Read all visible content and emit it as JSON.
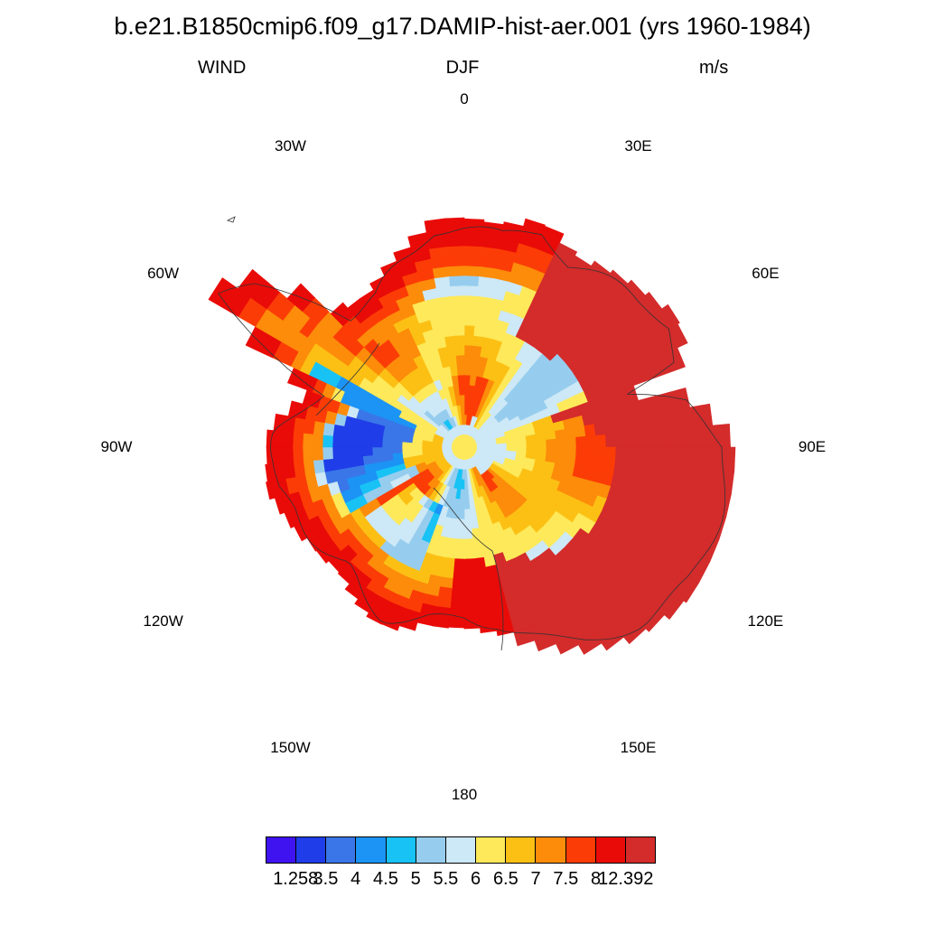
{
  "title": "b.e21.B1850cmip6.f09_g17.DAMIP-hist-aer.001 (yrs 1960-1984)",
  "subtitle": {
    "left": "WIND",
    "center": "DJF",
    "right": "m/s"
  },
  "longitude_labels": [
    "0",
    "30E",
    "60E",
    "90E",
    "120E",
    "150E",
    "180",
    "150W",
    "120W",
    "90W",
    "60W",
    "30W"
  ],
  "map": {
    "projection": "south polar stereographic",
    "variable": "WIND",
    "units": "m/s",
    "region": "Antarctica",
    "coastline": true
  },
  "colorbar": {
    "colors": [
      "#3f12f0",
      "#1f3de8",
      "#3a76e8",
      "#1b94f5",
      "#18c2f5",
      "#96cdee",
      "#cde8f6",
      "#fde95a",
      "#fcc014",
      "#fc8c0a",
      "#fc3c06",
      "#e90b08",
      "#d42b2b"
    ],
    "labels": [
      "1.258",
      "3.5",
      "4",
      "4.5",
      "5",
      "5.5",
      "6",
      "6.5",
      "7",
      "7.5",
      "8",
      "12.392"
    ],
    "min": 1.258,
    "max": 12.392
  }
}
